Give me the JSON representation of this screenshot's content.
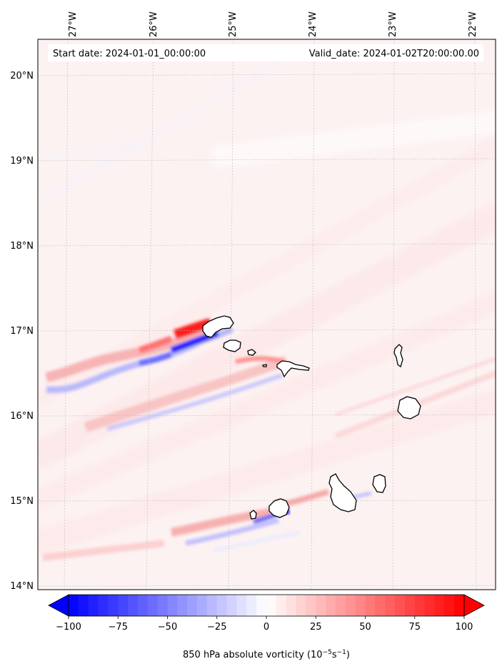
{
  "map": {
    "start_label": "Start date: 2024-01-01_00:00:00",
    "valid_label": "Valid_date: 2024-01-02T20:00:00.00",
    "lon_ticks": [
      "27°W",
      "26°W",
      "25°W",
      "24°W",
      "23°W",
      "22°W"
    ],
    "lat_ticks": [
      "20°N",
      "19°N",
      "18°N",
      "17°N",
      "16°N",
      "15°N",
      "14°N"
    ],
    "lon_range": [
      -27.3,
      -21.75
    ],
    "lat_range": [
      13.95,
      20.4
    ],
    "grid": true,
    "background_color": "#fdf1f1",
    "islands": [
      "Santo Antão",
      "São Vicente",
      "Santa Luzia",
      "São Nicolau",
      "Sal",
      "Boa Vista",
      "Maio",
      "Santiago",
      "Fogo",
      "Brava"
    ]
  },
  "colorbar": {
    "title_main": "850 hPa absolute vorticity (10",
    "title_exp1": "−5",
    "title_mid": "s",
    "title_exp2": "−1",
    "title_end": ")",
    "ticks": [
      "−100",
      "−75",
      "−50",
      "−25",
      "0",
      "25",
      "50",
      "75",
      "100"
    ],
    "range": [
      -100,
      100
    ],
    "extend": "both",
    "cmap": "bwr",
    "low_color": "#0000ff",
    "high_color": "#ff0000"
  }
}
